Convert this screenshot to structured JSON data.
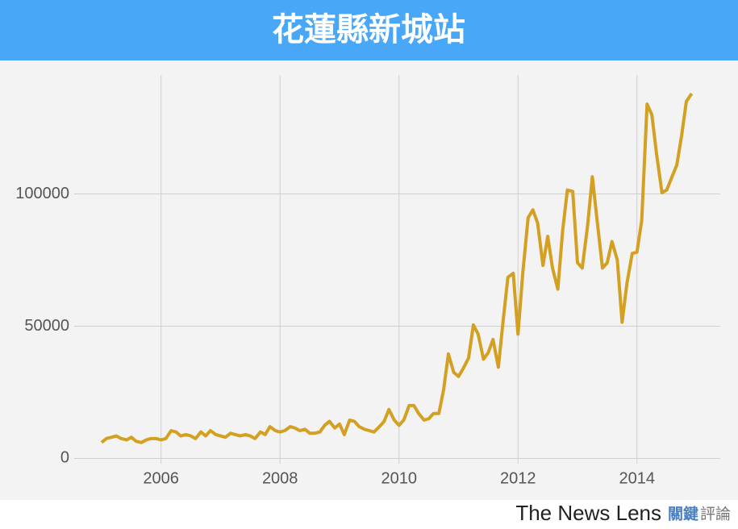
{
  "chart_data": {
    "type": "line",
    "title": "花蓮縣新城站",
    "x": [
      2005.0,
      2005.08,
      2005.17,
      2005.25,
      2005.33,
      2005.42,
      2005.5,
      2005.58,
      2005.67,
      2005.75,
      2005.83,
      2005.92,
      2006.0,
      2006.08,
      2006.17,
      2006.25,
      2006.33,
      2006.42,
      2006.5,
      2006.58,
      2006.67,
      2006.75,
      2006.83,
      2006.92,
      2007.0,
      2007.08,
      2007.17,
      2007.25,
      2007.33,
      2007.42,
      2007.5,
      2007.58,
      2007.67,
      2007.75,
      2007.83,
      2007.92,
      2008.0,
      2008.08,
      2008.17,
      2008.25,
      2008.33,
      2008.42,
      2008.5,
      2008.58,
      2008.67,
      2008.75,
      2008.83,
      2008.92,
      2009.0,
      2009.08,
      2009.17,
      2009.25,
      2009.33,
      2009.42,
      2009.5,
      2009.58,
      2009.67,
      2009.75,
      2009.83,
      2009.92,
      2010.0,
      2010.08,
      2010.17,
      2010.25,
      2010.33,
      2010.42,
      2010.5,
      2010.58,
      2010.67,
      2010.75,
      2010.83,
      2010.92,
      2011.0,
      2011.08,
      2011.17,
      2011.25,
      2011.33,
      2011.42,
      2011.5,
      2011.58,
      2011.67,
      2011.75,
      2011.83,
      2011.92,
      2012.0,
      2012.08,
      2012.17,
      2012.25,
      2012.33,
      2012.42,
      2012.5,
      2012.58,
      2012.67,
      2012.75,
      2012.83,
      2012.92,
      2013.0,
      2013.08,
      2013.17,
      2013.25,
      2013.33,
      2013.42,
      2013.5,
      2013.58,
      2013.67,
      2013.75,
      2013.83,
      2013.92,
      2014.0,
      2014.08,
      2014.17,
      2014.25,
      2014.33,
      2014.42,
      2014.5,
      2014.58,
      2014.67,
      2014.75,
      2014.83,
      2014.92
    ],
    "values": [
      6000,
      7500,
      8000,
      8500,
      7500,
      7000,
      8000,
      6500,
      6000,
      7000,
      7500,
      7500,
      7000,
      7500,
      10500,
      10000,
      8500,
      9000,
      8500,
      7500,
      10000,
      8500,
      10500,
      9000,
      8500,
      8000,
      9500,
      9000,
      8500,
      9000,
      8500,
      7500,
      10000,
      9000,
      12000,
      10500,
      10000,
      10500,
      12000,
      11500,
      10500,
      11000,
      9500,
      9500,
      10000,
      12500,
      14000,
      11500,
      13000,
      9000,
      14500,
      14000,
      12000,
      11000,
      10500,
      10000,
      12000,
      14000,
      18500,
      14500,
      12500,
      14500,
      20000,
      20000,
      17000,
      14500,
      15000,
      17000,
      17000,
      26000,
      39500,
      32500,
      31000,
      34000,
      38000,
      50500,
      47000,
      37500,
      40000,
      45000,
      34500,
      52000,
      68500,
      70000,
      47000,
      70000,
      91000,
      94000,
      89000,
      73000,
      84000,
      72000,
      64000,
      86000,
      101500,
      101000,
      74000,
      72000,
      88000,
      106500,
      90000,
      72000,
      74000,
      82000,
      75000,
      51500,
      66000,
      77500,
      78000,
      90000,
      134000,
      130000,
      115000,
      100500,
      101500,
      106000,
      111000,
      122000,
      135000,
      138000
    ],
    "color": "#d4a021",
    "xlim": [
      2004.54,
      2015.4
    ],
    "xticks": [
      2006,
      2008,
      2010,
      2012,
      2014
    ],
    "ylim": [
      -2000,
      145000
    ],
    "yticks": [
      0,
      50000,
      100000
    ],
    "grid": true
  },
  "footer": {
    "brand": "The News Lens",
    "brand_cn_1": "關鍵",
    "brand_cn_2": "評論"
  }
}
